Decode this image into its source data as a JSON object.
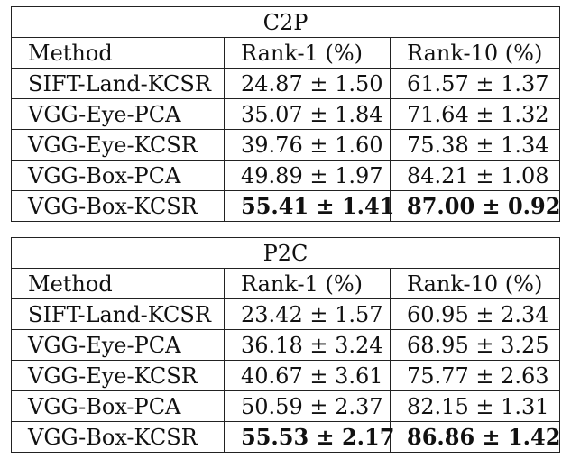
{
  "tables": [
    {
      "title": "C2P",
      "header": [
        "Method",
        "Rank-1 (%)",
        "Rank-10 (%)"
      ],
      "rows": [
        {
          "method": "SIFT-Land-KCSR",
          "rank1": "24.87 ± 1.50",
          "rank10": "61.57 ± 1.37",
          "bold": false
        },
        {
          "method": "VGG-Eye-PCA",
          "rank1": "35.07 ± 1.84",
          "rank10": "71.64 ± 1.32",
          "bold": false
        },
        {
          "method": "VGG-Eye-KCSR",
          "rank1": "39.76 ± 1.60",
          "rank10": "75.38 ± 1.34",
          "bold": false
        },
        {
          "method": "VGG-Box-PCA",
          "rank1": "49.89 ± 1.97",
          "rank10": "84.21 ± 1.08",
          "bold": false
        },
        {
          "method": "VGG-Box-KCSR",
          "rank1": "55.41 ± 1.41",
          "rank10": "87.00 ± 0.92",
          "bold": true
        }
      ]
    },
    {
      "title": "P2C",
      "header": [
        "Method",
        "Rank-1 (%)",
        "Rank-10 (%)"
      ],
      "rows": [
        {
          "method": "SIFT-Land-KCSR",
          "rank1": "23.42 ± 1.57",
          "rank10": "60.95 ± 2.34",
          "bold": false
        },
        {
          "method": "VGG-Eye-PCA",
          "rank1": "36.18 ± 3.24",
          "rank10": "68.95 ± 3.25",
          "bold": false
        },
        {
          "method": "VGG-Eye-KCSR",
          "rank1": "40.67 ± 3.61",
          "rank10": "75.77 ± 2.63",
          "bold": false
        },
        {
          "method": "VGG-Box-PCA",
          "rank1": "50.59 ± 2.37",
          "rank10": "82.15 ± 1.31",
          "bold": false
        },
        {
          "method": "VGG-Box-KCSR",
          "rank1": "55.53 ± 2.17",
          "rank10": "86.86 ± 1.42",
          "bold": true
        }
      ]
    }
  ]
}
